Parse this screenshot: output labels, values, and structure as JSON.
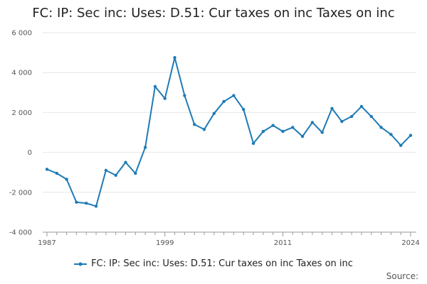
{
  "title": "FC: IP: Sec inc: Uses: D.51: Cur taxes on inc Taxes on inc",
  "source_label": "Source:",
  "colors": {
    "series": "#1f7bb6",
    "grid": "#e6e6e6",
    "axis": "#999999"
  },
  "chart_data": {
    "type": "line",
    "title": "FC: IP: Sec inc: Uses: D.51: Cur taxes on inc Taxes on inc",
    "xlabel": "",
    "ylabel": "",
    "xlim": [
      1987,
      2024
    ],
    "ylim": [
      -4000,
      6000
    ],
    "yticks": [
      -4000,
      -2000,
      0,
      2000,
      4000,
      6000
    ],
    "ytick_labels": [
      "-4 000",
      "-2 000",
      "0",
      "2 000",
      "4 000",
      "6 000"
    ],
    "xticks": [
      1987,
      1999,
      2011,
      2024
    ],
    "xtick_labels": [
      "1987",
      "1999",
      "2011",
      "2024"
    ],
    "grid": true,
    "legend_position": "bottom",
    "series": [
      {
        "name": "FC: IP: Sec inc: Uses: D.51: Cur taxes on inc Taxes on inc",
        "x": [
          1987,
          1988,
          1989,
          1990,
          1991,
          1992,
          1993,
          1994,
          1995,
          1996,
          1997,
          1998,
          1999,
          2000,
          2001,
          2002,
          2003,
          2004,
          2005,
          2006,
          2007,
          2008,
          2009,
          2010,
          2011,
          2012,
          2013,
          2014,
          2015,
          2016,
          2017,
          2018,
          2019,
          2020,
          2021,
          2022,
          2023,
          2024
        ],
        "values": [
          -850,
          -1050,
          -1350,
          -2500,
          -2550,
          -2700,
          -900,
          -1150,
          -500,
          -1050,
          250,
          3300,
          2700,
          4750,
          2850,
          1400,
          1150,
          1950,
          2550,
          2850,
          2150,
          450,
          1050,
          1350,
          1050,
          1250,
          800,
          1500,
          1000,
          2200,
          1550,
          1800,
          2300,
          1800,
          1250,
          900,
          350,
          850
        ]
      }
    ]
  }
}
